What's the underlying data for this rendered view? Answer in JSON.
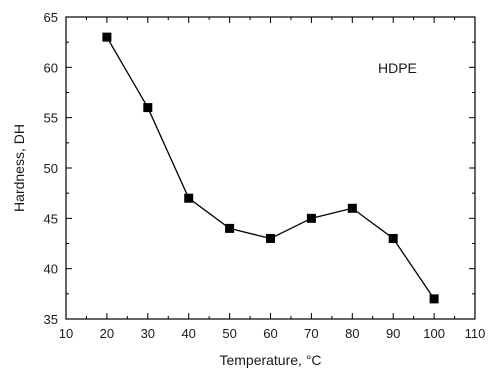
{
  "chart_data": {
    "type": "line",
    "xlabel": "Temperature, °C",
    "ylabel": "Hardness, DH",
    "xlim": [
      10,
      110
    ],
    "ylim": [
      35,
      65
    ],
    "xticks": [
      10,
      20,
      30,
      40,
      50,
      60,
      70,
      80,
      90,
      100,
      110
    ],
    "yticks": [
      35,
      40,
      45,
      50,
      55,
      60,
      65
    ],
    "grid": false,
    "marker": "square",
    "line_color": "#000000",
    "annotation": "HDPE",
    "series": [
      {
        "x": [
          20,
          30,
          40,
          50,
          60,
          70,
          80,
          90,
          100
        ],
        "y": [
          63,
          56,
          47,
          44,
          43,
          45,
          46,
          43,
          37
        ]
      }
    ]
  }
}
